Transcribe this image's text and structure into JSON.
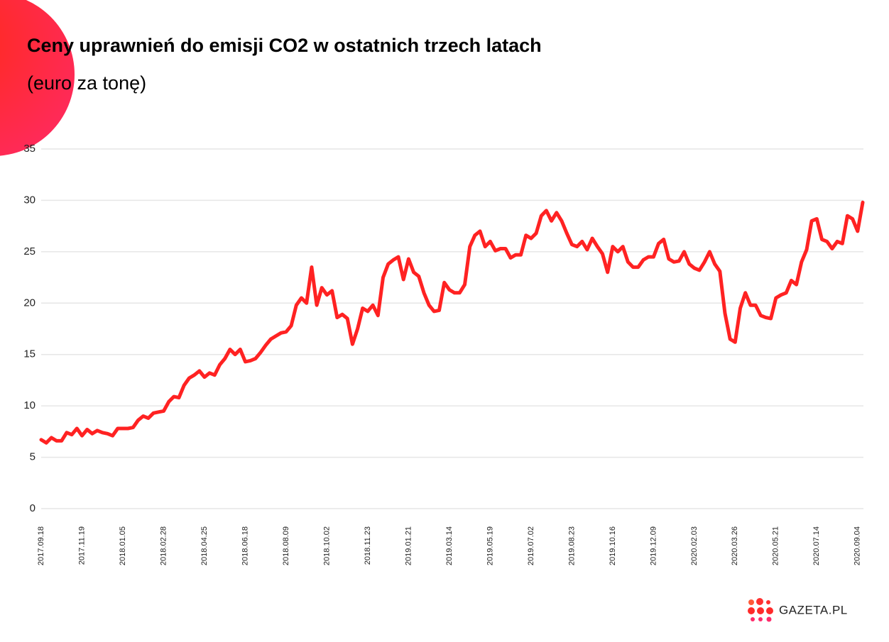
{
  "chart_data": {
    "type": "line",
    "title": "Ceny uprawnień do emisji CO2 w ostatnich trzech latach",
    "subtitle": "(euro za tonę)",
    "logo": "GAZETA.PL",
    "categories": [
      "2017.09.18",
      null,
      null,
      null,
      null,
      null,
      null,
      null,
      "2017.11.19",
      null,
      null,
      null,
      null,
      null,
      null,
      null,
      "2018.01.05",
      null,
      null,
      null,
      null,
      null,
      null,
      null,
      "2018.02.28",
      null,
      null,
      null,
      null,
      null,
      null,
      null,
      "2018.04.25",
      null,
      null,
      null,
      null,
      null,
      null,
      null,
      "2018.06.18",
      null,
      null,
      null,
      null,
      null,
      null,
      null,
      "2018.08.09",
      null,
      null,
      null,
      null,
      null,
      null,
      null,
      "2018.10.02",
      null,
      null,
      null,
      null,
      null,
      null,
      null,
      "2018.11.23",
      null,
      null,
      null,
      null,
      null,
      null,
      null,
      "2019.01.21",
      null,
      null,
      null,
      null,
      null,
      null,
      null,
      "2019.03.14",
      null,
      null,
      null,
      null,
      null,
      null,
      null,
      "2019.05.19",
      null,
      null,
      null,
      null,
      null,
      null,
      null,
      "2019.07.02",
      null,
      null,
      null,
      null,
      null,
      null,
      null,
      "2019.08.23",
      null,
      null,
      null,
      null,
      null,
      null,
      null,
      "2019.10.16",
      null,
      null,
      null,
      null,
      null,
      null,
      null,
      "2019.12.09",
      null,
      null,
      null,
      null,
      null,
      null,
      null,
      "2020.02.03",
      null,
      null,
      null,
      null,
      null,
      null,
      null,
      "2020.03.26",
      null,
      null,
      null,
      null,
      null,
      null,
      null,
      "2020.05.21",
      null,
      null,
      null,
      null,
      null,
      null,
      null,
      "2020.07.14",
      null,
      null,
      null,
      null,
      null,
      null,
      null,
      "2020.09.04",
      null
    ],
    "series": [
      {
        "color": "#ff2222",
        "values": [
          6.7,
          6.4,
          6.9,
          6.6,
          6.6,
          7.4,
          7.2,
          7.8,
          7.1,
          7.7,
          7.3,
          7.6,
          7.4,
          7.3,
          7.1,
          7.8,
          7.8,
          7.8,
          7.9,
          8.6,
          9.0,
          8.8,
          9.3,
          9.4,
          9.5,
          10.4,
          10.9,
          10.8,
          12.0,
          12.7,
          13.0,
          13.4,
          12.8,
          13.2,
          13.0,
          14.0,
          14.6,
          15.5,
          15.0,
          15.5,
          14.3,
          14.4,
          14.6,
          15.2,
          15.9,
          16.5,
          16.8,
          17.1,
          17.2,
          17.8,
          19.8,
          20.5,
          20.0,
          23.5,
          19.8,
          21.5,
          20.8,
          21.2,
          18.6,
          18.9,
          18.5,
          16.0,
          17.5,
          19.5,
          19.2,
          19.8,
          18.8,
          22.5,
          23.8,
          24.2,
          24.5,
          22.3,
          24.3,
          23.0,
          22.6,
          21.0,
          19.8,
          19.2,
          19.3,
          22.0,
          21.3,
          21.0,
          21.0,
          21.8,
          25.5,
          26.6,
          27.0,
          25.5,
          26.0,
          25.1,
          25.3,
          25.3,
          24.4,
          24.7,
          24.7,
          26.6,
          26.3,
          26.8,
          28.5,
          29.0,
          28.0,
          28.8,
          28.0,
          26.8,
          25.7,
          25.5,
          26.0,
          25.2,
          26.3,
          25.5,
          24.8,
          23.0,
          25.5,
          25.0,
          25.5,
          24.0,
          23.5,
          23.5,
          24.2,
          24.5,
          24.5,
          25.8,
          26.2,
          24.3,
          24.0,
          24.1,
          25.0,
          23.8,
          23.4,
          23.2,
          24.0,
          25.0,
          23.8,
          23.1,
          19.0,
          16.5,
          16.2,
          19.5,
          21.0,
          19.8,
          19.8,
          18.8,
          18.6,
          18.5,
          20.5,
          20.8,
          21.0,
          22.2,
          21.8,
          24.0,
          25.2,
          28.0,
          28.2,
          26.2,
          26.0,
          25.3,
          26.0,
          25.8,
          28.5,
          28.2,
          27.0,
          29.8
        ]
      }
    ],
    "ylim": [
      0,
      35
    ],
    "yticks": [
      0,
      5,
      10,
      15,
      20,
      25,
      30,
      35
    ],
    "grid": true
  }
}
